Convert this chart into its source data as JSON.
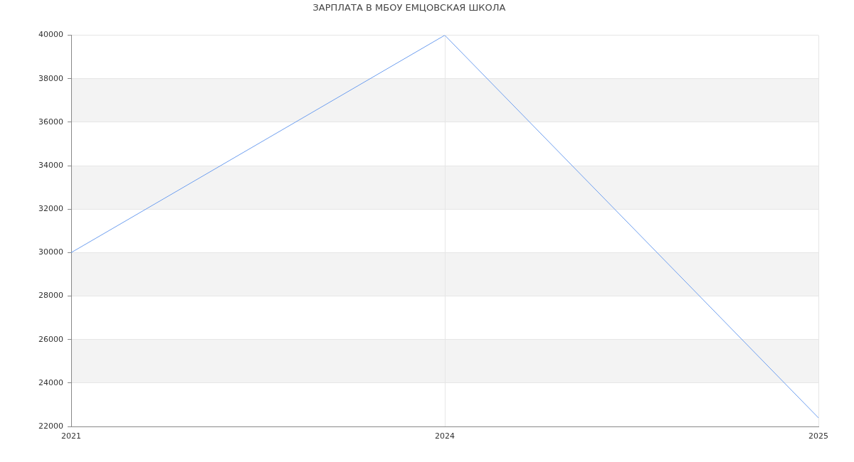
{
  "chart_data": {
    "type": "line",
    "title": "ЗАРПЛАТА В МБОУ ЕМЦОВСКАЯ ШКОЛА",
    "categories": [
      "2021",
      "2024",
      "2025"
    ],
    "series": [
      {
        "color": "#6d9eef",
        "values": [
          30000,
          40000,
          22400
        ]
      }
    ],
    "ylim": [
      22000,
      40000
    ],
    "yticks": [
      22000,
      24000,
      26000,
      28000,
      30000,
      32000,
      34000,
      36000,
      38000,
      40000
    ],
    "grid": true,
    "marker": "none",
    "line_style": "solid",
    "bands": [
      {
        "axis": "y",
        "from": 24000,
        "to": 26000,
        "color": "#f3f3f3"
      },
      {
        "axis": "y",
        "from": 28000,
        "to": 30000,
        "color": "#f3f3f3"
      },
      {
        "axis": "y",
        "from": 32000,
        "to": 34000,
        "color": "#f3f3f3"
      },
      {
        "axis": "y",
        "from": 36000,
        "to": 38000,
        "color": "#f3f3f3"
      }
    ]
  }
}
